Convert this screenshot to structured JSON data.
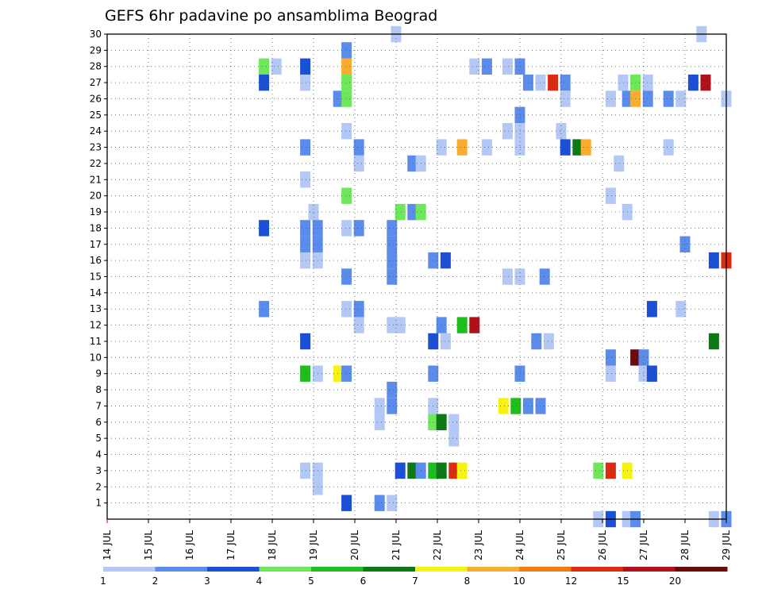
{
  "chart_data": {
    "type": "heatmap",
    "title": "GEFS 6hr padavine po ansamblima Beograd",
    "xlabel": "",
    "ylabel": "",
    "y_ticks": [
      "1",
      "2",
      "3",
      "4",
      "5",
      "6",
      "7",
      "8",
      "9",
      "10",
      "11",
      "12",
      "13",
      "14",
      "15",
      "16",
      "17",
      "18",
      "19",
      "20",
      "21",
      "22",
      "23",
      "24",
      "25",
      "26",
      "27",
      "28",
      "29",
      "30"
    ],
    "x_ticks": [
      "14 JUL",
      "15 JUL",
      "16 JUL",
      "17 JUL",
      "18 JUL",
      "19 JUL",
      "20 JUL",
      "21 JUL",
      "22 JUL",
      "23 JUL",
      "24 JUL",
      "25 JUL",
      "26 JUL",
      "27 JUL",
      "28 JUL",
      "29 JUL"
    ],
    "x_range_days": [
      14,
      29
    ],
    "y_range": [
      0,
      30
    ],
    "grid": true,
    "colorbar": {
      "colors": [
        "#b3c8f5",
        "#5c8ceb",
        "#1a4fd6",
        "#6ee85a",
        "#1fbe1f",
        "#0b7a14",
        "#f4f410",
        "#f9ad30",
        "#f27c14",
        "#dc2b10",
        "#b0101a",
        "#6a0a0a"
      ],
      "tick_labels": [
        "1",
        "2",
        "3",
        "4",
        "5",
        "6",
        "7",
        "8",
        "10",
        "12",
        "15",
        "20"
      ]
    },
    "cells": [
      [
        21.0,
        30,
        1
      ],
      [
        28.4,
        30,
        1
      ],
      [
        19.8,
        29,
        2
      ],
      [
        17.8,
        28,
        4
      ],
      [
        18.1,
        28,
        1
      ],
      [
        18.8,
        28,
        3
      ],
      [
        19.8,
        28,
        8
      ],
      [
        22.9,
        28,
        1
      ],
      [
        23.2,
        28,
        2
      ],
      [
        23.7,
        28,
        1
      ],
      [
        24.0,
        28,
        2
      ],
      [
        17.8,
        27,
        3
      ],
      [
        18.8,
        27,
        1
      ],
      [
        19.8,
        27,
        4
      ],
      [
        24.2,
        27,
        2
      ],
      [
        24.5,
        27,
        1
      ],
      [
        24.8,
        27,
        10
      ],
      [
        25.1,
        27,
        2
      ],
      [
        26.5,
        27,
        1
      ],
      [
        26.8,
        27,
        4
      ],
      [
        27.1,
        27,
        1
      ],
      [
        28.2,
        27,
        3
      ],
      [
        28.5,
        27,
        11
      ],
      [
        19.6,
        26,
        2
      ],
      [
        19.8,
        26,
        4
      ],
      [
        25.1,
        26,
        1
      ],
      [
        26.2,
        26,
        1
      ],
      [
        26.6,
        26,
        2
      ],
      [
        26.8,
        26,
        8
      ],
      [
        27.1,
        26,
        2
      ],
      [
        27.6,
        26,
        2
      ],
      [
        27.9,
        26,
        1
      ],
      [
        29.0,
        26,
        1
      ],
      [
        24.0,
        25,
        2
      ],
      [
        19.8,
        24,
        1
      ],
      [
        23.7,
        24,
        1
      ],
      [
        24.0,
        24,
        1
      ],
      [
        25.0,
        24,
        1
      ],
      [
        18.8,
        23,
        2
      ],
      [
        20.1,
        23,
        2
      ],
      [
        22.1,
        23,
        1
      ],
      [
        22.6,
        23,
        8
      ],
      [
        23.2,
        23,
        1
      ],
      [
        24.0,
        23,
        1
      ],
      [
        25.1,
        23,
        3
      ],
      [
        25.4,
        23,
        6
      ],
      [
        25.6,
        23,
        8
      ],
      [
        27.6,
        23,
        1
      ],
      [
        20.1,
        22,
        1
      ],
      [
        21.4,
        22,
        2
      ],
      [
        21.6,
        22,
        1
      ],
      [
        26.4,
        22,
        1
      ],
      [
        18.8,
        21,
        1
      ],
      [
        19.8,
        20,
        4
      ],
      [
        26.2,
        20,
        1
      ],
      [
        19.0,
        19,
        1
      ],
      [
        21.1,
        19,
        4
      ],
      [
        21.4,
        19,
        2
      ],
      [
        21.6,
        19,
        4
      ],
      [
        26.6,
        19,
        1
      ],
      [
        17.8,
        18,
        3
      ],
      [
        18.8,
        18,
        2
      ],
      [
        19.1,
        18,
        2
      ],
      [
        19.8,
        18,
        1
      ],
      [
        20.1,
        18,
        2
      ],
      [
        20.9,
        18,
        2
      ],
      [
        18.8,
        17,
        2
      ],
      [
        19.1,
        17,
        2
      ],
      [
        20.9,
        17,
        2
      ],
      [
        28.0,
        17,
        2
      ],
      [
        18.8,
        16,
        1
      ],
      [
        19.1,
        16,
        1
      ],
      [
        20.9,
        16,
        2
      ],
      [
        21.9,
        16,
        2
      ],
      [
        22.2,
        16,
        3
      ],
      [
        28.7,
        16,
        3
      ],
      [
        29.0,
        16,
        10
      ],
      [
        19.8,
        15,
        2
      ],
      [
        20.9,
        15,
        2
      ],
      [
        23.7,
        15,
        1
      ],
      [
        24.0,
        15,
        1
      ],
      [
        24.6,
        15,
        2
      ],
      [
        17.8,
        13,
        2
      ],
      [
        19.8,
        13,
        1
      ],
      [
        20.1,
        13,
        2
      ],
      [
        27.2,
        13,
        3
      ],
      [
        27.9,
        13,
        1
      ],
      [
        20.1,
        12,
        1
      ],
      [
        20.9,
        12,
        1
      ],
      [
        21.1,
        12,
        1
      ],
      [
        22.1,
        12,
        2
      ],
      [
        22.6,
        12,
        5
      ],
      [
        22.9,
        12,
        11
      ],
      [
        18.8,
        11,
        3
      ],
      [
        21.9,
        11,
        3
      ],
      [
        22.2,
        11,
        1
      ],
      [
        24.4,
        11,
        2
      ],
      [
        24.7,
        11,
        1
      ],
      [
        28.7,
        11,
        6
      ],
      [
        26.2,
        10,
        2
      ],
      [
        26.8,
        10,
        12
      ],
      [
        27.0,
        10,
        2
      ],
      [
        18.8,
        9,
        5
      ],
      [
        19.1,
        9,
        1
      ],
      [
        19.6,
        9,
        7
      ],
      [
        19.8,
        9,
        2
      ],
      [
        21.9,
        9,
        2
      ],
      [
        24.0,
        9,
        2
      ],
      [
        26.2,
        9,
        1
      ],
      [
        27.0,
        9,
        1
      ],
      [
        27.2,
        9,
        3
      ],
      [
        20.9,
        8,
        2
      ],
      [
        20.6,
        7,
        1
      ],
      [
        20.9,
        7,
        2
      ],
      [
        21.9,
        7,
        1
      ],
      [
        23.6,
        7,
        7
      ],
      [
        23.9,
        7,
        5
      ],
      [
        24.2,
        7,
        2
      ],
      [
        24.5,
        7,
        2
      ],
      [
        20.6,
        6,
        1
      ],
      [
        21.9,
        6,
        4
      ],
      [
        22.1,
        6,
        6
      ],
      [
        22.4,
        6,
        1
      ],
      [
        22.4,
        5,
        1
      ],
      [
        18.8,
        3,
        1
      ],
      [
        19.1,
        3,
        1
      ],
      [
        21.1,
        3,
        3
      ],
      [
        21.4,
        3,
        6
      ],
      [
        21.6,
        3,
        2
      ],
      [
        21.9,
        3,
        5
      ],
      [
        22.1,
        3,
        6
      ],
      [
        22.4,
        3,
        10
      ],
      [
        22.6,
        3,
        7
      ],
      [
        25.9,
        3,
        4
      ],
      [
        26.2,
        3,
        10
      ],
      [
        26.6,
        3,
        7
      ],
      [
        19.1,
        2,
        1
      ],
      [
        19.8,
        1,
        3
      ],
      [
        20.6,
        1,
        2
      ],
      [
        20.9,
        1,
        1
      ],
      [
        25.9,
        0,
        1
      ],
      [
        26.2,
        0,
        3
      ],
      [
        26.6,
        0,
        1
      ],
      [
        26.8,
        0,
        2
      ],
      [
        28.7,
        0,
        1
      ],
      [
        29.0,
        0,
        2
      ]
    ]
  }
}
